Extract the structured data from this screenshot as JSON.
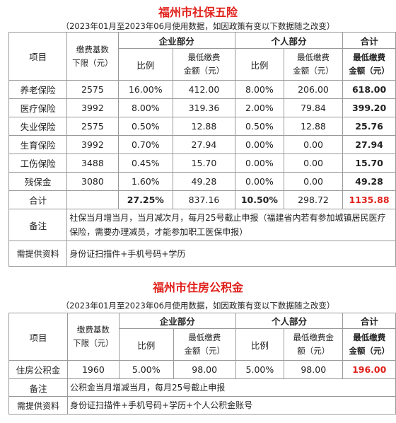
{
  "social": {
    "title": "福州市社保五险",
    "subtitle": "（2023年01月至2023年06月使用数据，如因政策有变以下数据随之改变）",
    "headers": {
      "item": "项目",
      "base_line1": "缴费基数",
      "base_line2": "下限（元）",
      "company": "企业部分",
      "personal": "个人部分",
      "total": "合计",
      "ratio": "比例",
      "min_fee_line1": "最低缴费",
      "min_fee_line2": "金额（元）",
      "total_min_line1": "最低缴费",
      "total_min_line2": "金额（元）"
    },
    "rows": [
      {
        "name": "养老保险",
        "base": "2575",
        "c_ratio": "16.00%",
        "c_amt": "412.00",
        "p_ratio": "8.00%",
        "p_amt": "206.00",
        "total": "618.00"
      },
      {
        "name": "医疗保险",
        "base": "3992",
        "c_ratio": "8.00%",
        "c_amt": "319.36",
        "p_ratio": "2.00%",
        "p_amt": "79.84",
        "total": "399.20"
      },
      {
        "name": "失业保险",
        "base": "2575",
        "c_ratio": "0.50%",
        "c_amt": "12.88",
        "p_ratio": "0.50%",
        "p_amt": "12.88",
        "total": "25.76"
      },
      {
        "name": "生育保险",
        "base": "3992",
        "c_ratio": "0.70%",
        "c_amt": "27.94",
        "p_ratio": "0.00%",
        "p_amt": "0.00",
        "total": "27.94"
      },
      {
        "name": "工伤保险",
        "base": "3488",
        "c_ratio": "0.45%",
        "c_amt": "15.70",
        "p_ratio": "0.00%",
        "p_amt": "0.00",
        "total": "15.70"
      },
      {
        "name": "残保金",
        "base": "3080",
        "c_ratio": "1.60%",
        "c_amt": "49.28",
        "p_ratio": "0.00%",
        "p_amt": "0.00",
        "total": "49.28"
      }
    ],
    "sum": {
      "label": "合计",
      "c_ratio": "27.25%",
      "c_amt": "837.16",
      "p_ratio": "10.50%",
      "p_amt": "298.72",
      "total": "1135.88"
    },
    "remark_label": "备注",
    "remark": "社保当月增当月，当月减次月，每月25号截止申报（福建省内若有参加城镇居民医疗保险，需要办理减员，才能参加职工医保申报）",
    "docs_label": "需提供资料",
    "docs": "身份证扫描件+手机号码+学历"
  },
  "housing": {
    "title": "福州市住房公积金",
    "subtitle": "（2023年01月至2023年06月使用数据，如因政策有变以下数据随之改变）",
    "headers": {
      "item": "项目",
      "base_line1": "缴费基数",
      "base_line2": "下限（元）",
      "company": "企业部分",
      "personal": "个人部分",
      "total": "合计",
      "ratio": "比例",
      "min_fee_line1": "最低缴费",
      "min_fee_line2": "金额（元）",
      "p_min_fee_line1": "最低缴费金",
      "p_min_fee_line2": "额（元）",
      "total_min_line1": "最低缴费",
      "total_min_line2": "金额（元）"
    },
    "row": {
      "name": "住房公积金",
      "base": "1960",
      "c_ratio": "5.00%",
      "c_amt": "98.00",
      "p_ratio": "5.00%",
      "p_amt": "98.00",
      "total": "196.00"
    },
    "remark_label": "备注",
    "remark": "公积金当月增减当月，每月25号截止申报",
    "docs_label": "需提供资料",
    "docs": "身份证扫描件+手机号码+学历+个人公积金账号"
  }
}
